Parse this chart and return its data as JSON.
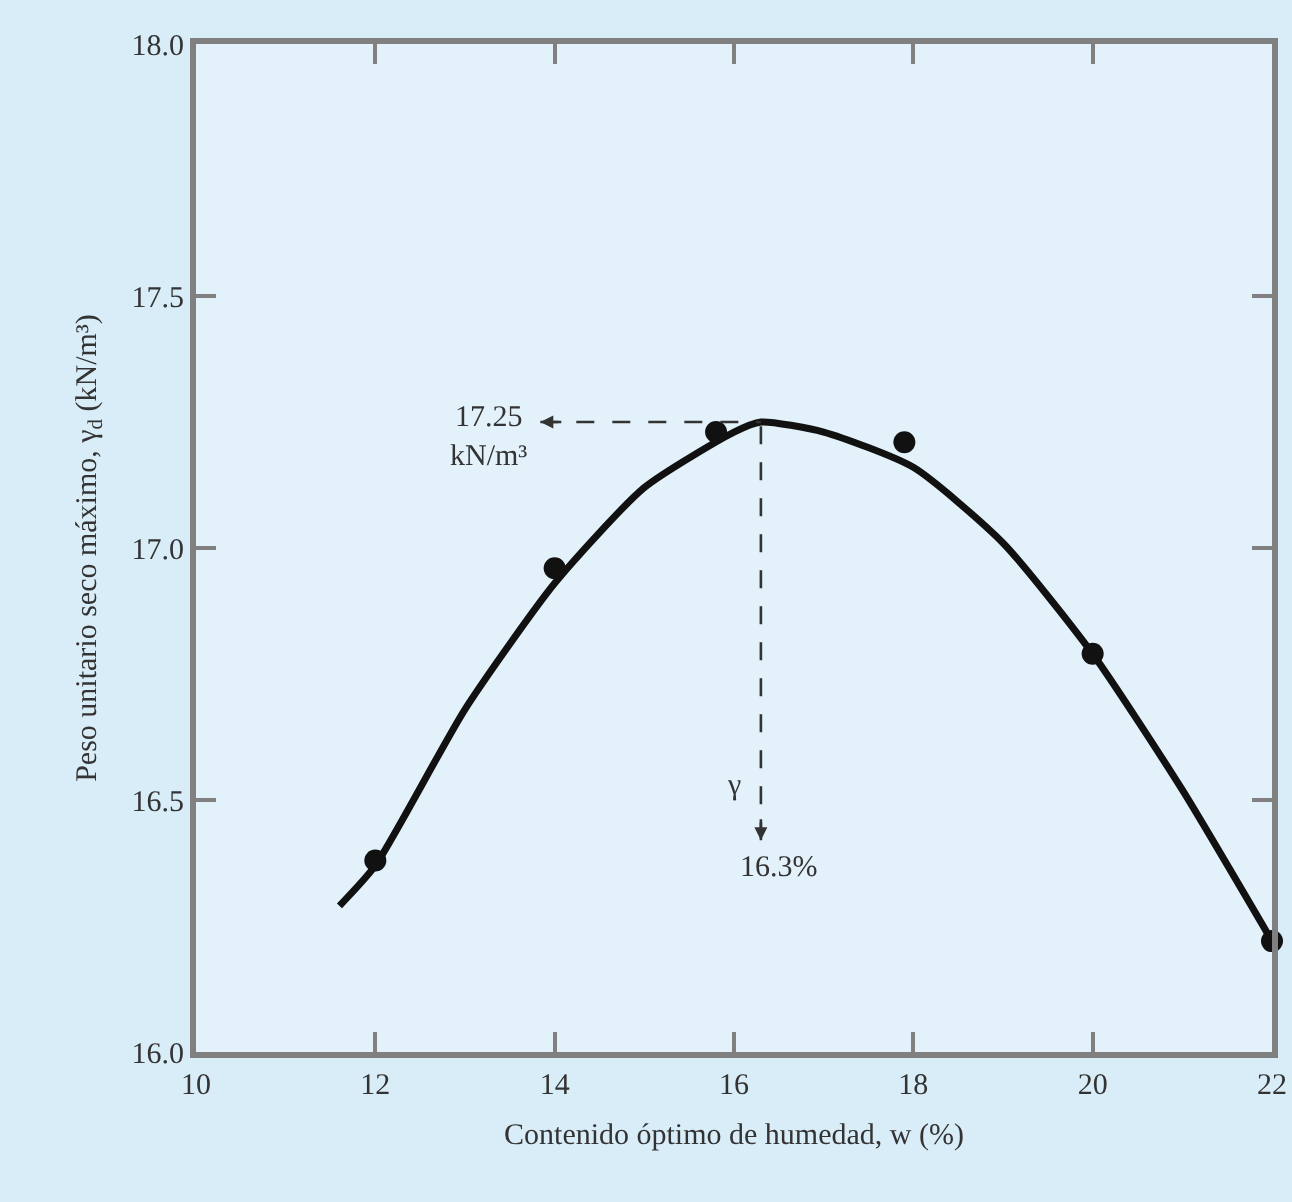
{
  "chart_data": {
    "type": "scatter",
    "xlabel": "Contenido óptimo de humedad, w (%)",
    "ylabel": "Peso unitario seco máximo, γ$_{d}$ (kN/m³)",
    "series": [
      {
        "type": "line",
        "color": "#111111",
        "marker": "none",
        "line_style": "solid",
        "x": [
          11.6,
          12,
          13,
          14,
          15,
          16,
          16.3,
          17,
          18,
          19,
          20,
          21,
          22
        ],
        "values": [
          16.29,
          16.37,
          16.68,
          16.93,
          17.12,
          17.23,
          17.25,
          17.23,
          17.16,
          17.01,
          16.79,
          16.52,
          16.22
        ]
      },
      {
        "color": "#111111",
        "marker": "circle",
        "x": [
          12,
          14,
          15.8,
          17.9,
          20,
          22
        ],
        "values": [
          16.38,
          16.96,
          17.23,
          17.21,
          16.79,
          16.22
        ]
      }
    ],
    "xlim": [
      10,
      22
    ],
    "xticks": [
      10,
      12,
      14,
      16,
      18,
      20,
      22
    ],
    "ylim": [
      16,
      18
    ],
    "yticks": [
      {
        "value": 16,
        "label": "16.0"
      },
      16.5,
      {
        "value": 17,
        "label": "17.0"
      },
      17.5,
      {
        "value": 18,
        "label": "18.0"
      }
    ],
    "ref_lines": [
      {
        "axis": "y",
        "value": 17.25,
        "label": "17.25 kN/m³",
        "line_style": "dashed",
        "color": "#333333"
      },
      {
        "axis": "x",
        "value": 16.3,
        "label": "16.3%",
        "line_style": "dashed",
        "color": "#333333"
      }
    ],
    "annotations": [
      "γ"
    ],
    "grid": false
  }
}
